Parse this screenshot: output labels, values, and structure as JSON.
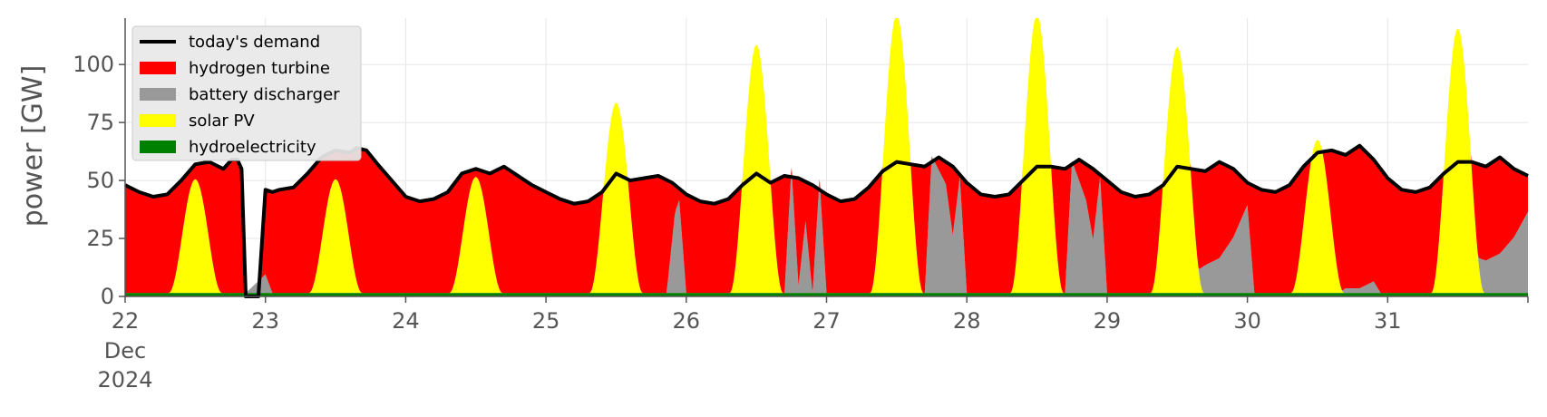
{
  "chart_data": {
    "type": "area",
    "ylabel": "power [GW]",
    "xlim_days": [
      22,
      32
    ],
    "ylim": [
      0,
      120
    ],
    "yticks": [
      0,
      25,
      50,
      75,
      100
    ],
    "xticks": [
      {
        "day": 22,
        "label": "22",
        "sub": [
          "Dec",
          "2024"
        ]
      },
      {
        "day": 23,
        "label": "23"
      },
      {
        "day": 24,
        "label": "24"
      },
      {
        "day": 25,
        "label": "25"
      },
      {
        "day": 26,
        "label": "26"
      },
      {
        "day": 27,
        "label": "27"
      },
      {
        "day": 28,
        "label": "28"
      },
      {
        "day": 29,
        "label": "29"
      },
      {
        "day": 30,
        "label": "30"
      },
      {
        "day": 31,
        "label": "31"
      }
    ],
    "grid": true,
    "legend_position": "top-left",
    "legend": [
      {
        "name": "today's demand",
        "kind": "line",
        "color": "#000000"
      },
      {
        "name": "hydrogen turbine",
        "kind": "patch",
        "color": "#ff0000"
      },
      {
        "name": "battery discharger",
        "kind": "patch",
        "color": "#999999"
      },
      {
        "name": "solar PV",
        "kind": "patch",
        "color": "#ffff00"
      },
      {
        "name": "hydroelectricity",
        "kind": "patch",
        "color": "#008000"
      }
    ],
    "demand": [
      [
        22.0,
        48
      ],
      [
        22.1,
        45
      ],
      [
        22.2,
        43
      ],
      [
        22.3,
        44
      ],
      [
        22.4,
        50
      ],
      [
        22.5,
        57
      ],
      [
        22.6,
        58
      ],
      [
        22.7,
        55
      ],
      [
        22.76,
        59
      ],
      [
        22.8,
        59
      ],
      [
        22.83,
        55
      ],
      [
        22.86,
        0
      ],
      [
        22.95,
        0
      ],
      [
        23.0,
        46
      ],
      [
        23.05,
        45
      ],
      [
        23.1,
        46
      ],
      [
        23.2,
        47
      ],
      [
        23.3,
        53
      ],
      [
        23.4,
        60
      ],
      [
        23.5,
        63
      ],
      [
        23.6,
        62
      ],
      [
        23.65,
        64
      ],
      [
        23.72,
        63
      ],
      [
        23.8,
        57
      ],
      [
        23.9,
        50
      ],
      [
        24.0,
        43
      ],
      [
        24.1,
        41
      ],
      [
        24.2,
        42
      ],
      [
        24.3,
        45
      ],
      [
        24.4,
        53
      ],
      [
        24.5,
        55
      ],
      [
        24.6,
        53
      ],
      [
        24.7,
        56
      ],
      [
        24.8,
        52
      ],
      [
        24.9,
        48
      ],
      [
        25.0,
        45
      ],
      [
        25.1,
        42
      ],
      [
        25.2,
        40
      ],
      [
        25.3,
        41
      ],
      [
        25.4,
        45
      ],
      [
        25.5,
        53
      ],
      [
        25.6,
        50
      ],
      [
        25.7,
        51
      ],
      [
        25.8,
        52
      ],
      [
        25.9,
        49
      ],
      [
        26.0,
        44
      ],
      [
        26.1,
        41
      ],
      [
        26.2,
        40
      ],
      [
        26.3,
        42
      ],
      [
        26.4,
        48
      ],
      [
        26.5,
        53
      ],
      [
        26.6,
        49
      ],
      [
        26.7,
        52
      ],
      [
        26.8,
        51
      ],
      [
        26.9,
        48
      ],
      [
        27.0,
        44
      ],
      [
        27.1,
        41
      ],
      [
        27.2,
        42
      ],
      [
        27.3,
        47
      ],
      [
        27.4,
        54
      ],
      [
        27.5,
        58
      ],
      [
        27.6,
        57
      ],
      [
        27.7,
        56
      ],
      [
        27.8,
        60
      ],
      [
        27.9,
        56
      ],
      [
        28.0,
        49
      ],
      [
        28.1,
        44
      ],
      [
        28.2,
        43
      ],
      [
        28.3,
        44
      ],
      [
        28.4,
        50
      ],
      [
        28.5,
        56
      ],
      [
        28.6,
        56
      ],
      [
        28.7,
        55
      ],
      [
        28.8,
        59
      ],
      [
        28.9,
        55
      ],
      [
        29.0,
        50
      ],
      [
        29.1,
        45
      ],
      [
        29.2,
        43
      ],
      [
        29.3,
        44
      ],
      [
        29.4,
        48
      ],
      [
        29.5,
        56
      ],
      [
        29.6,
        55
      ],
      [
        29.7,
        54
      ],
      [
        29.8,
        58
      ],
      [
        29.9,
        55
      ],
      [
        30.0,
        49
      ],
      [
        30.1,
        46
      ],
      [
        30.2,
        45
      ],
      [
        30.3,
        48
      ],
      [
        30.4,
        56
      ],
      [
        30.5,
        62
      ],
      [
        30.6,
        63
      ],
      [
        30.7,
        61
      ],
      [
        30.8,
        65
      ],
      [
        30.9,
        59
      ],
      [
        31.0,
        51
      ],
      [
        31.1,
        46
      ],
      [
        31.2,
        45
      ],
      [
        31.3,
        47
      ],
      [
        31.4,
        53
      ],
      [
        31.5,
        58
      ],
      [
        31.6,
        58
      ],
      [
        31.7,
        56
      ],
      [
        31.8,
        60
      ],
      [
        31.9,
        55
      ],
      [
        32.0,
        52
      ]
    ],
    "solar_peaks": [
      {
        "day": 22.5,
        "peak": 49
      },
      {
        "day": 23.5,
        "peak": 49
      },
      {
        "day": 24.5,
        "peak": 50
      },
      {
        "day": 25.5,
        "peak": 82
      },
      {
        "day": 26.5,
        "peak": 107
      },
      {
        "day": 27.5,
        "peak": 120
      },
      {
        "day": 28.5,
        "peak": 120
      },
      {
        "day": 29.5,
        "peak": 106
      },
      {
        "day": 30.5,
        "peak": 66
      },
      {
        "day": 31.5,
        "peak": 114
      }
    ],
    "battery": [
      [
        22.0,
        0
      ],
      [
        22.86,
        0
      ],
      [
        23.0,
        8
      ],
      [
        23.05,
        0
      ],
      [
        25.86,
        0
      ],
      [
        25.92,
        35
      ],
      [
        25.95,
        40
      ],
      [
        26.0,
        0
      ],
      [
        26.7,
        0
      ],
      [
        26.75,
        54
      ],
      [
        26.8,
        3
      ],
      [
        26.85,
        31
      ],
      [
        26.9,
        0
      ],
      [
        26.95,
        49
      ],
      [
        27.0,
        0
      ],
      [
        27.7,
        0
      ],
      [
        27.75,
        59
      ],
      [
        27.85,
        47
      ],
      [
        27.9,
        25
      ],
      [
        27.95,
        50
      ],
      [
        28.0,
        0
      ],
      [
        28.7,
        0
      ],
      [
        28.75,
        57
      ],
      [
        28.85,
        40
      ],
      [
        28.9,
        23
      ],
      [
        28.95,
        50
      ],
      [
        29.0,
        0
      ],
      [
        29.6,
        0
      ],
      [
        29.65,
        10
      ],
      [
        29.7,
        12
      ],
      [
        29.8,
        15
      ],
      [
        29.9,
        24
      ],
      [
        30.0,
        38
      ],
      [
        30.05,
        0
      ],
      [
        30.6,
        0
      ],
      [
        30.65,
        0
      ],
      [
        30.7,
        2
      ],
      [
        30.8,
        2
      ],
      [
        30.9,
        5
      ],
      [
        30.95,
        0
      ],
      [
        31.6,
        0
      ],
      [
        31.65,
        15
      ],
      [
        31.7,
        14
      ],
      [
        31.8,
        17
      ],
      [
        31.9,
        24
      ],
      [
        32.0,
        35
      ]
    ],
    "hydro_level": 1.5
  }
}
